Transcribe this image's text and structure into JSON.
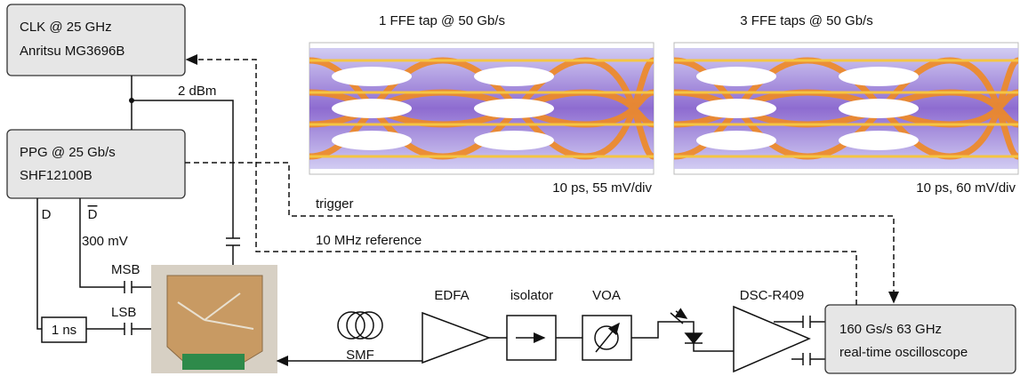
{
  "nodes": [
    {
      "label": [
        "CLK @ 25 GHz",
        "Anritsu MG3696B"
      ]
    },
    {
      "label": [
        "PPG @ 25 Gb/s",
        "SHF12100B"
      ]
    },
    {
      "label": [
        "160 Gs/s 63 GHz",
        "real-time oscilloscope"
      ]
    },
    {
      "label": "1 ns"
    },
    {
      "label": "SMF"
    },
    {
      "label": "EDFA"
    },
    {
      "label": "isolator"
    },
    {
      "label": "VOA"
    },
    {
      "label": "DSC-R409"
    }
  ],
  "edge_labels": {
    "power": "2 dBm",
    "d": "D",
    "d_bar": "D",
    "swing": "300 mV",
    "msb": "MSB",
    "lsb": "LSB",
    "trigger": "trigger",
    "reference": "10 MHz reference"
  },
  "eye_diagrams": [
    {
      "title": "1 FFE tap @ 50 Gb/s",
      "caption": "10 ps, 55 mV/div"
    },
    {
      "title": "3 FFE taps @ 50 Gb/s",
      "caption": "10 ps, 60 mV/div"
    }
  ]
}
